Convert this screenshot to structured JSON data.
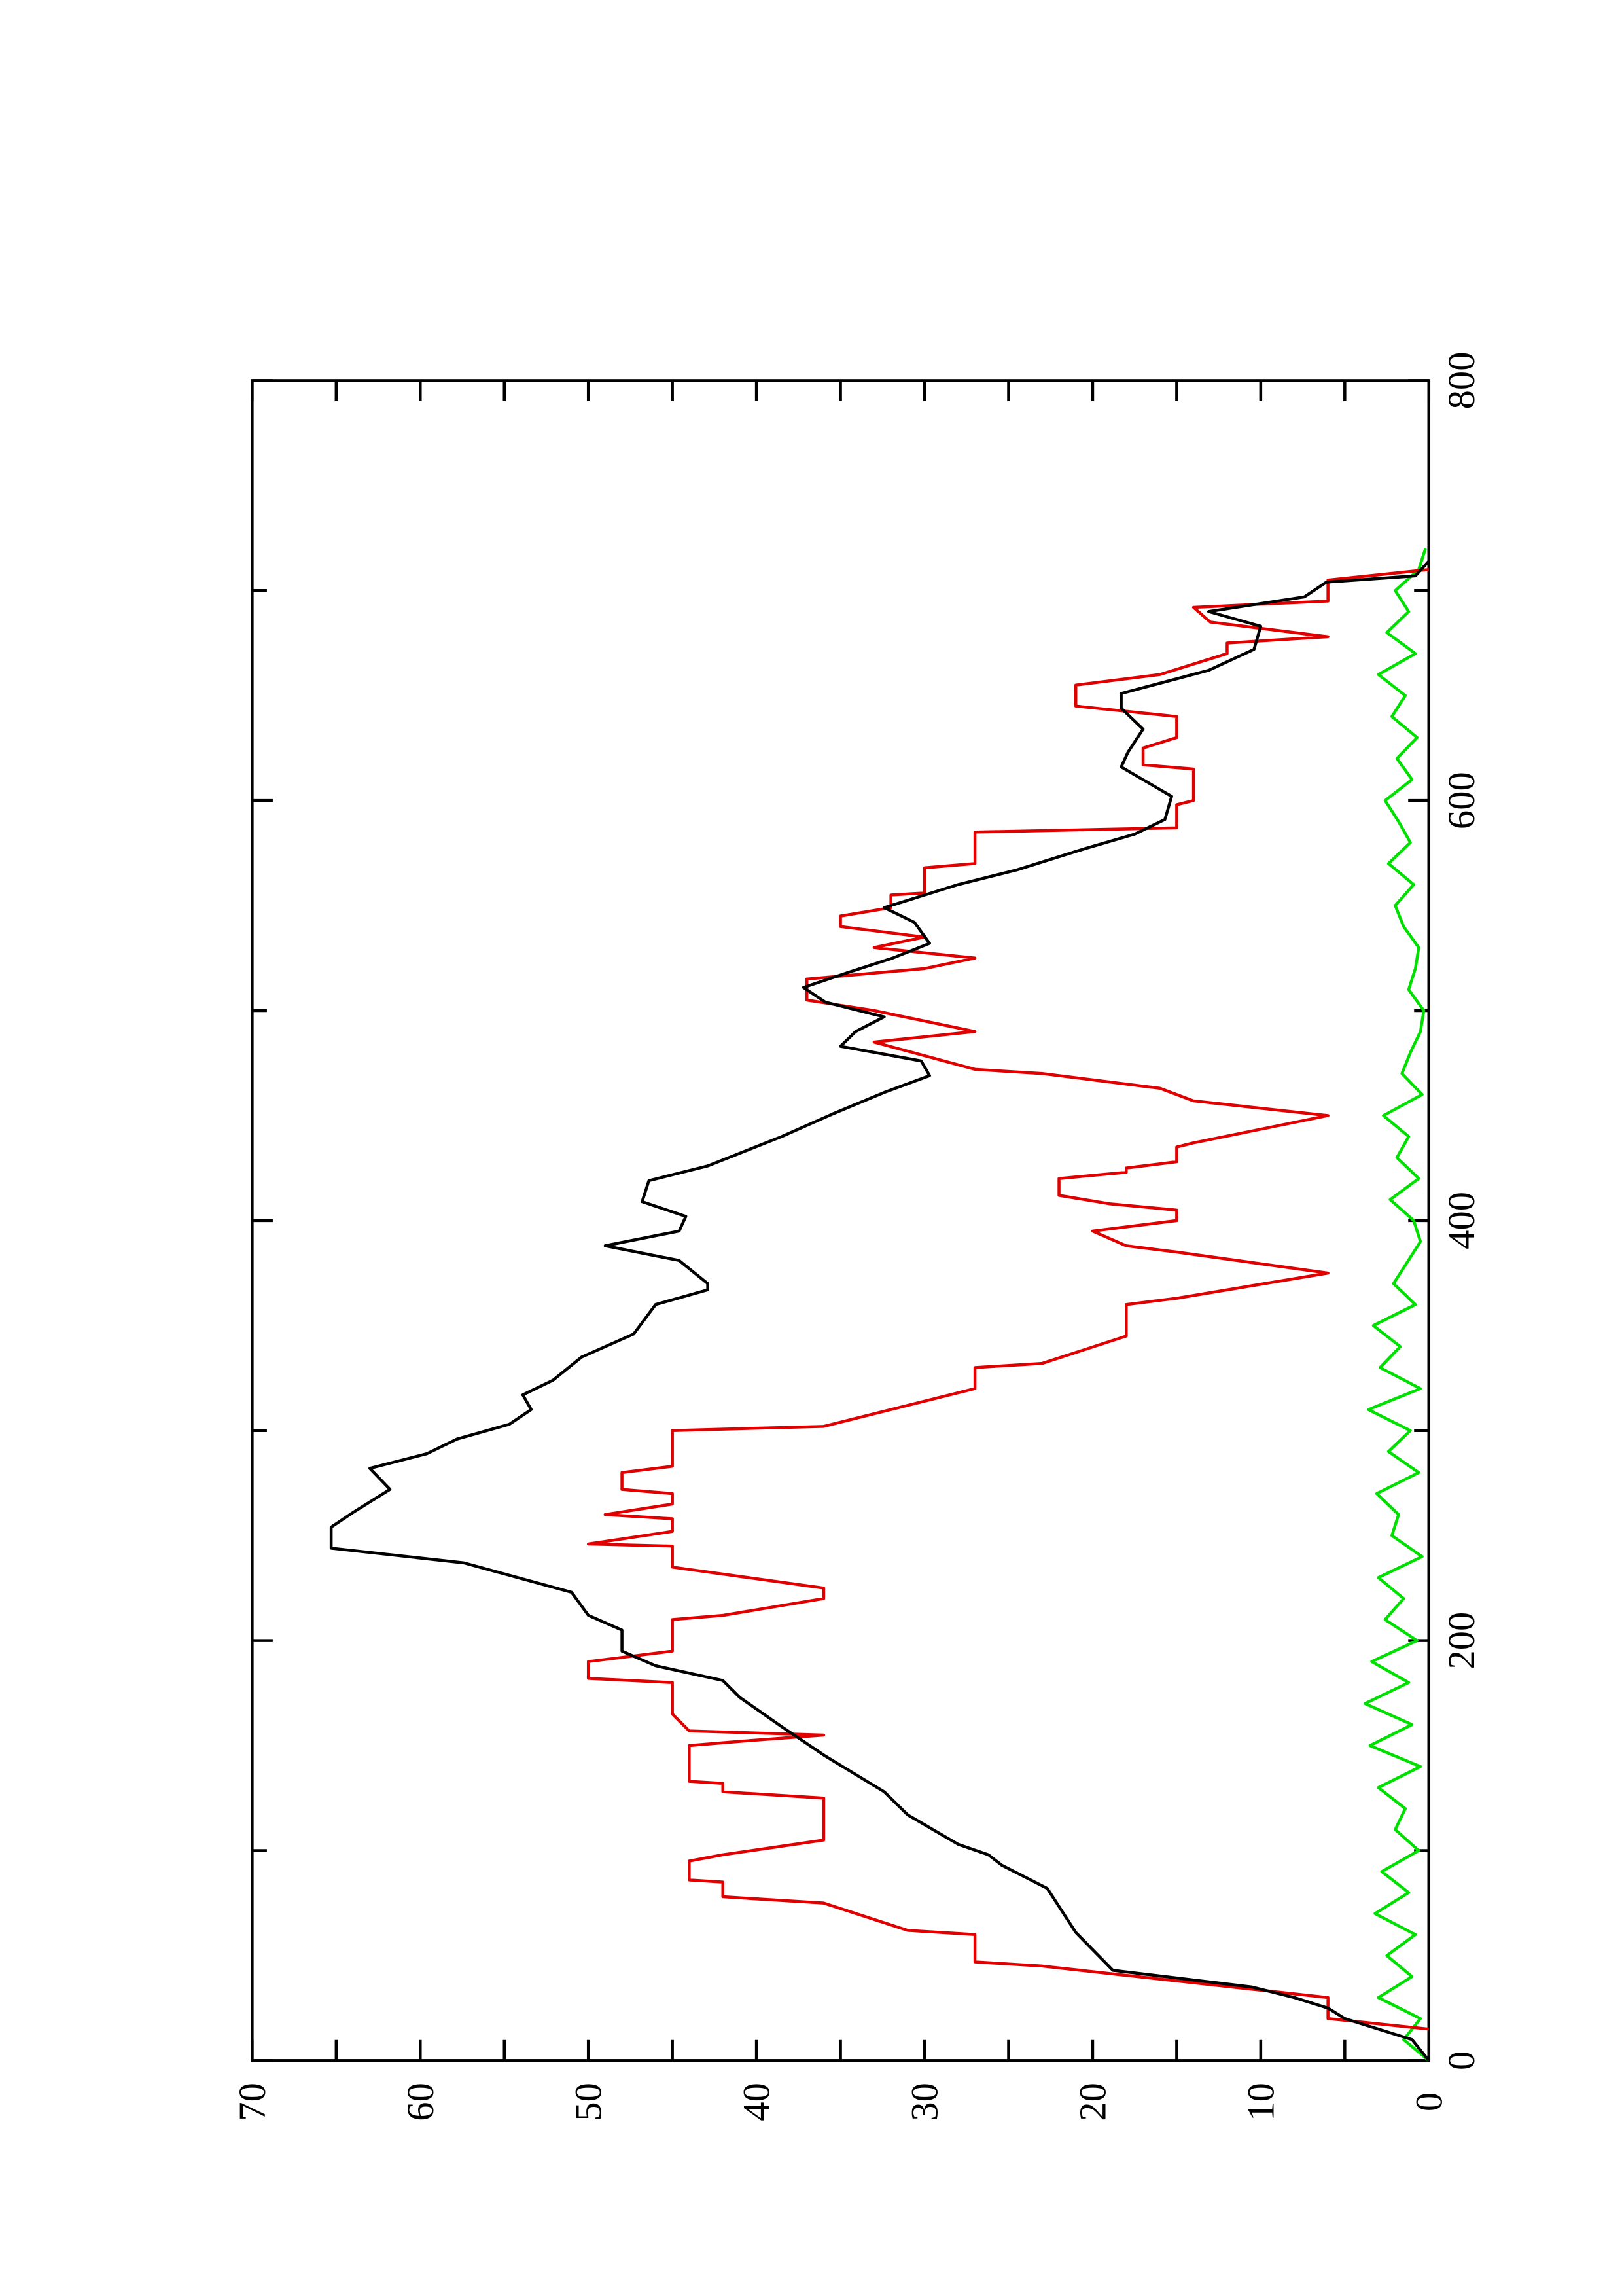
{
  "chart_data": {
    "type": "line",
    "rotated": true,
    "xlim": [
      0,
      800
    ],
    "xticks": [
      0,
      200,
      400,
      600,
      800
    ],
    "xminor_ticks": [
      100,
      300,
      500,
      700
    ],
    "ylim": [
      0,
      70
    ],
    "yticks": [
      0,
      10,
      20,
      30,
      40,
      50,
      60,
      70
    ],
    "yminor_ticks": [
      5,
      15,
      25,
      35,
      45,
      55,
      65
    ],
    "series": [
      {
        "color": "#000000",
        "x": [
          0,
          10,
          20,
          25,
          30,
          35,
          43,
          61,
          82,
          93,
          98,
          103,
          117,
          128,
          145,
          159,
          173,
          181,
          188,
          195,
          205,
          212,
          223,
          237,
          244,
          254,
          261,
          272,
          282,
          289,
          296,
          303,
          310,
          317,
          324,
          335,
          346,
          360,
          367,
          370,
          381,
          388,
          395,
          402,
          409,
          419,
          426,
          440,
          451,
          461,
          469,
          476,
          483,
          490,
          497,
          504,
          511,
          518,
          525,
          532,
          542,
          549,
          560,
          567,
          577,
          584,
          591,
          602,
          616,
          623,
          634,
          644,
          651,
          662,
          672,
          683,
          690,
          697,
          704,
          707,
          714
        ],
        "values": [
          0,
          1,
          5,
          6,
          8,
          10.5,
          18.8,
          21,
          22.7,
          25.4,
          26.2,
          28,
          31,
          32.4,
          35.9,
          38.5,
          41,
          42,
          46,
          48,
          48,
          50,
          51,
          57.4,
          65.3,
          65.3,
          64,
          61.8,
          63,
          59.6,
          57.8,
          54.7,
          53.4,
          53.9,
          52.1,
          50.4,
          47.3,
          46,
          42.9,
          42.9,
          44.6,
          49,
          44.6,
          44.2,
          46.8,
          46.4,
          42.9,
          38.5,
          35.4,
          32.4,
          29.7,
          30.2,
          35,
          34.1,
          32.4,
          35.9,
          37.2,
          34.6,
          31.9,
          29.7,
          30.6,
          32.4,
          28,
          24.5,
          20.5,
          17.5,
          15.7,
          15.3,
          18.3,
          17.9,
          17,
          18.3,
          18.3,
          13.1,
          10.4,
          10,
          13.1,
          7.4,
          6.1,
          0.8,
          0
        ]
      },
      {
        "color": "#e00000",
        "x": [
          15,
          20,
          30,
          45,
          47,
          60,
          62,
          75,
          78,
          85,
          86,
          95,
          98,
          105,
          125,
          128,
          132,
          133,
          150,
          152,
          155,
          157,
          165,
          180,
          182,
          190,
          195,
          210,
          212,
          220,
          225,
          235,
          245,
          246,
          252,
          258,
          260,
          265,
          270,
          272,
          280,
          283,
          300,
          302,
          320,
          330,
          332,
          345,
          360,
          363,
          375,
          385,
          388,
          395,
          397,
          400,
          405,
          408,
          412,
          420,
          423,
          425,
          428,
          435,
          437,
          450,
          457,
          463,
          470,
          472,
          485,
          490,
          500,
          505,
          515,
          520,
          525,
          530,
          535,
          540,
          545,
          549,
          555,
          556,
          568,
          570,
          585,
          587,
          598,
          600,
          615,
          617,
          625,
          630,
          640,
          645,
          655,
          660,
          670,
          675,
          678,
          685,
          692,
          695,
          705,
          710
        ],
        "values": [
          0,
          6,
          6,
          23,
          27,
          27,
          31,
          36,
          42,
          42,
          44,
          44,
          42,
          36,
          36,
          42,
          42,
          44,
          44,
          41,
          36,
          44,
          45,
          45,
          50,
          50,
          45,
          45,
          42,
          36,
          36,
          45,
          45,
          50,
          45,
          45,
          49,
          45,
          45,
          48,
          48,
          45,
          45,
          36,
          27,
          27,
          23,
          18,
          18,
          15,
          6,
          15,
          18,
          20,
          18,
          15,
          15,
          19,
          22,
          22,
          18,
          18,
          15,
          15,
          14,
          6,
          14,
          16,
          23,
          27,
          33,
          27,
          33,
          37,
          37,
          30,
          27,
          33,
          30,
          35,
          35,
          32,
          32,
          30,
          30,
          27,
          27,
          15,
          15,
          14,
          14,
          17,
          17,
          15,
          15,
          21,
          21,
          16,
          12,
          12,
          6,
          13,
          14,
          6,
          6,
          0
        ]
      },
      {
        "color": "#00e000",
        "x": [
          0,
          10,
          20,
          30,
          40,
          50,
          60,
          70,
          80,
          90,
          100,
          110,
          120,
          130,
          140,
          150,
          160,
          170,
          180,
          190,
          200,
          210,
          220,
          230,
          240,
          250,
          260,
          270,
          280,
          290,
          300,
          310,
          320,
          330,
          340,
          350,
          360,
          370,
          380,
          390,
          400,
          410,
          420,
          430,
          440,
          450,
          460,
          470,
          480,
          490,
          500,
          510,
          520,
          530,
          540,
          550,
          560,
          570,
          580,
          590,
          600,
          610,
          620,
          630,
          640,
          650,
          660,
          670,
          680,
          690,
          700,
          710,
          720
        ],
        "values": [
          0,
          1.5,
          0.5,
          3,
          1,
          2.5,
          0.8,
          3.2,
          1.2,
          2.8,
          0.6,
          2,
          1.4,
          3,
          0.5,
          3.5,
          1,
          3.8,
          1.2,
          3.4,
          0.7,
          2.6,
          1.5,
          3,
          0.4,
          2.2,
          1.8,
          3.1,
          0.6,
          2.4,
          1.1,
          3.6,
          0.5,
          2.9,
          1.7,
          3.3,
          0.8,
          2.1,
          1.3,
          0.5,
          0.9,
          2.3,
          0.6,
          1.9,
          1.2,
          2.7,
          0.4,
          1.6,
          1.1,
          0.5,
          0.3,
          1.2,
          0.8,
          0.6,
          1.5,
          2,
          0.9,
          2.4,
          1.1,
          1.8,
          2.6,
          1,
          1.9,
          0.7,
          2.2,
          1.4,
          3,
          0.8,
          2.5,
          1.2,
          2,
          0.6,
          0.2
        ]
      }
    ]
  }
}
